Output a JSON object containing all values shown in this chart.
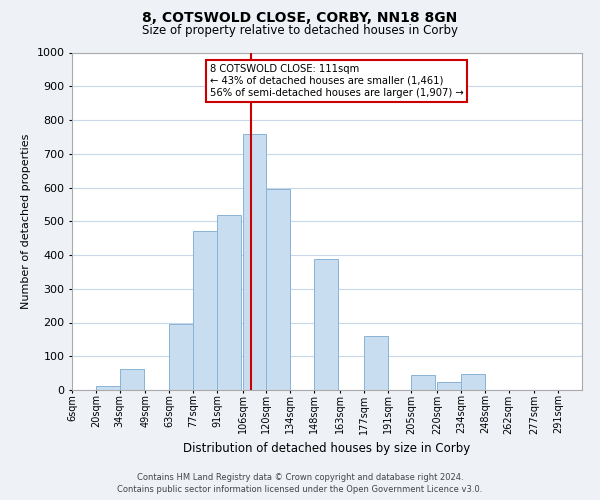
{
  "title": "8, COTSWOLD CLOSE, CORBY, NN18 8GN",
  "subtitle": "Size of property relative to detached houses in Corby",
  "xlabel": "Distribution of detached houses by size in Corby",
  "ylabel": "Number of detached properties",
  "bin_labels": [
    "6sqm",
    "20sqm",
    "34sqm",
    "49sqm",
    "63sqm",
    "77sqm",
    "91sqm",
    "106sqm",
    "120sqm",
    "134sqm",
    "148sqm",
    "163sqm",
    "177sqm",
    "191sqm",
    "205sqm",
    "220sqm",
    "234sqm",
    "248sqm",
    "262sqm",
    "277sqm",
    "291sqm"
  ],
  "bin_left": [
    6,
    20,
    34,
    49,
    63,
    77,
    91,
    106,
    120,
    134,
    148,
    163,
    177,
    191,
    205,
    220,
    234,
    248,
    262,
    277,
    291
  ],
  "bin_width": 14,
  "bar_heights": [
    0,
    13,
    63,
    0,
    196,
    470,
    519,
    760,
    596,
    0,
    389,
    0,
    160,
    0,
    43,
    25,
    46,
    0,
    0,
    0,
    0
  ],
  "bar_color": "#c9ddf0",
  "bar_edge_color": "#8ab4d4",
  "property_line_x": 111,
  "property_line_color": "#cc0000",
  "annotation_title": "8 COTSWOLD CLOSE: 111sqm",
  "annotation_line1": "← 43% of detached houses are smaller (1,461)",
  "annotation_line2": "56% of semi-detached houses are larger (1,907) →",
  "annotation_box_color": "#ffffff",
  "annotation_border_color": "#cc0000",
  "ylim": [
    0,
    1000
  ],
  "yticks": [
    0,
    100,
    200,
    300,
    400,
    500,
    600,
    700,
    800,
    900,
    1000
  ],
  "footer_line1": "Contains HM Land Registry data © Crown copyright and database right 2024.",
  "footer_line2": "Contains public sector information licensed under the Open Government Licence v3.0.",
  "background_color": "#eef2f7",
  "plot_background_color": "#ffffff",
  "grid_color": "#c8d8ea",
  "title_fontsize": 10,
  "subtitle_fontsize": 8.5,
  "axis_label_fontsize": 8,
  "tick_fontsize": 7,
  "footer_fontsize": 6
}
